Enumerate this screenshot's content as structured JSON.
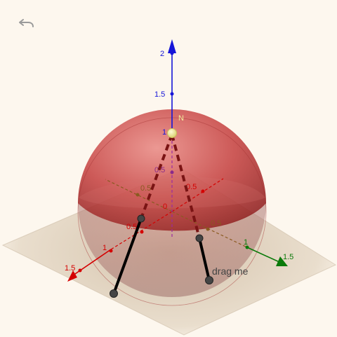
{
  "toolbar": {
    "undo_icon": "undo-icon"
  },
  "axes": {
    "x": {
      "color": "#d40000",
      "ticks": [
        "0.5",
        "1",
        "1.5"
      ]
    },
    "y": {
      "color": "#0a7a0a",
      "ticks": [
        "0.5",
        "1",
        "1.5"
      ]
    },
    "z": {
      "color": "#1515d8",
      "ticks": [
        "0.5",
        "1",
        "1.5",
        "2"
      ]
    },
    "origin_label": "0"
  },
  "scene": {
    "sphere_color": "#c0292b",
    "plane_color": "#b9a58a",
    "north_pole_color": "#f2eb9a",
    "point_color": "#444444",
    "north_pole_label": "N",
    "drag_label": "drag me"
  }
}
